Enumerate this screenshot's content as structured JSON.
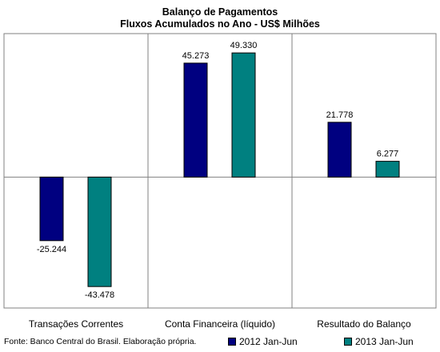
{
  "chart_data": {
    "type": "bar",
    "title": "Balanço de Pagamentos",
    "subtitle": "Fluxos Acumulados no Ano - US$ Milhões",
    "categories": [
      "Transações Correntes",
      "Conta Financeira (líquido)",
      "Resultado do Balanço"
    ],
    "series": [
      {
        "name": "2012 Jan-Jun",
        "values": [
          -25244,
          45273,
          21778
        ],
        "labels": [
          "-25.244",
          "45.273",
          "21.778"
        ],
        "color": "#000080"
      },
      {
        "name": "2013 Jan-Jun",
        "values": [
          -43478,
          49330,
          6277
        ],
        "labels": [
          "-43.478",
          "49.330",
          "6.277"
        ],
        "color": "#008080"
      }
    ],
    "ylim": [
      -52000,
      57000
    ],
    "grid": false,
    "legend_position": "bottom-right"
  },
  "footer": {
    "source": "Fonte: Banco Central do Brasil.  Elaboração própria."
  }
}
